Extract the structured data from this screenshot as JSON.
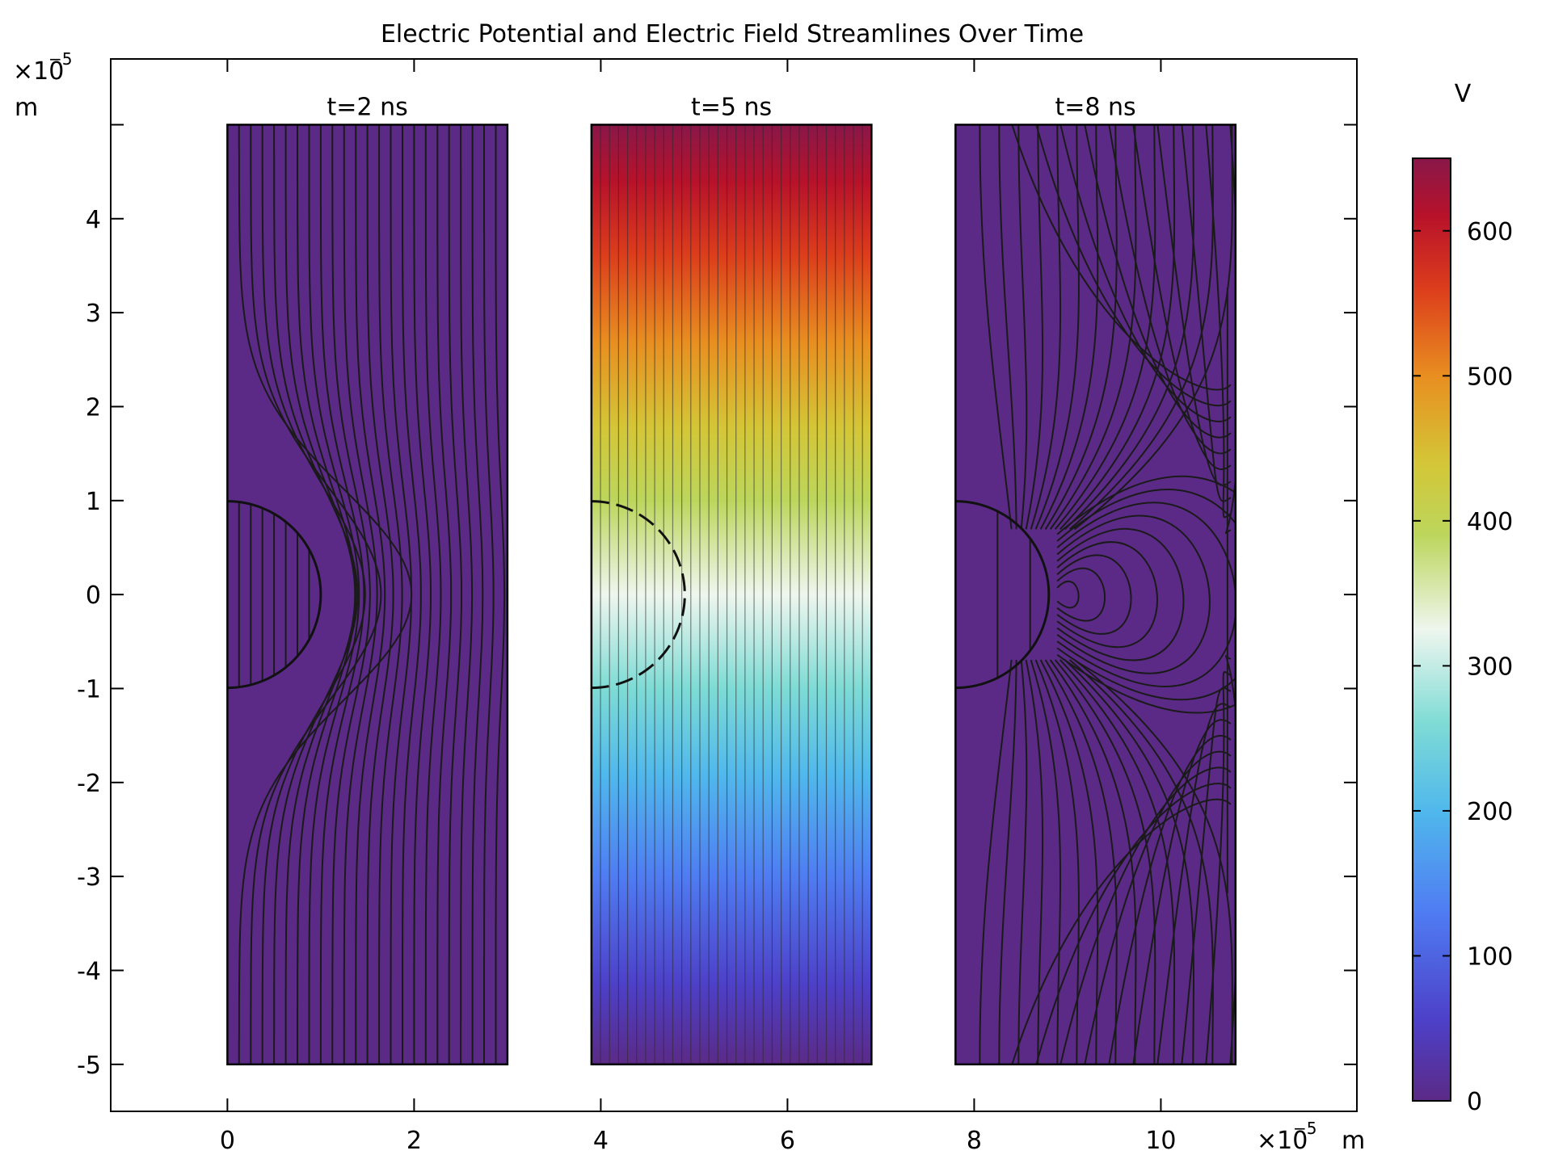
{
  "chart_data": {
    "type": "heatmap",
    "title": "Electric Potential and Electric Field Streamlines Over Time",
    "x_axis": {
      "ticks": [
        0,
        2,
        4,
        6,
        8,
        10
      ],
      "tick_labels": [
        "0",
        "2",
        "4",
        "6",
        "8",
        "10"
      ],
      "range": [
        -1.25,
        12.1
      ],
      "multiplier": "×10",
      "exponent": "−5",
      "unit": "m"
    },
    "y_axis": {
      "ticks": [
        4,
        3,
        2,
        1,
        0,
        -1,
        -2,
        -3,
        -4,
        -5
      ],
      "tick_labels": [
        "4",
        "3",
        "2",
        "1",
        "0",
        "-1",
        "-2",
        "-3",
        "-4",
        "-5"
      ],
      "range": [
        -5.5,
        5.7
      ],
      "multiplier": "×10",
      "exponent": "−5",
      "unit": "m"
    },
    "panels": [
      {
        "label": "t=2 ns",
        "x_range": [
          0,
          3
        ],
        "y_range": [
          -5,
          5
        ],
        "potential_V": "≈0 (uniform)",
        "sphere": {
          "center": [
            0,
            0
          ],
          "radius": 1,
          "outline": "solid"
        },
        "field": "straight vertical lines bending around the sphere"
      },
      {
        "label": "t=5 ns",
        "x_range": [
          3.9,
          6.9
        ],
        "y_range": [
          -5,
          5
        ],
        "potential_V": "linear gradient 0 (bottom) to ≈650 (top)",
        "sphere": {
          "center": [
            3.9,
            0
          ],
          "radius": 1,
          "outline": "dashed"
        },
        "field": "uniform vertical lines"
      },
      {
        "label": "t=8 ns",
        "x_range": [
          7.8,
          10.8
        ],
        "y_range": [
          -5,
          5
        ],
        "potential_V": "≈0 (uniform)",
        "sphere": {
          "center": [
            7.8,
            0
          ],
          "radius": 1,
          "outline": "solid"
        },
        "field": "dipole-like loops around the sphere"
      }
    ],
    "colorbar": {
      "unit": "V",
      "min": 0,
      "max": 650,
      "ticks": [
        0,
        100,
        200,
        300,
        400,
        500,
        600
      ],
      "tick_labels": [
        "0",
        "100",
        "200",
        "300",
        "400",
        "500",
        "600"
      ],
      "colormap": [
        {
          "v": 0,
          "color": "#5b2a86"
        },
        {
          "v": 55,
          "color": "#4d40c8"
        },
        {
          "v": 130,
          "color": "#4f7cf2"
        },
        {
          "v": 200,
          "color": "#50b8ec"
        },
        {
          "v": 260,
          "color": "#7edbd5"
        },
        {
          "v": 325,
          "color": "#eef6ee"
        },
        {
          "v": 390,
          "color": "#bcd65c"
        },
        {
          "v": 440,
          "color": "#d4c637"
        },
        {
          "v": 500,
          "color": "#e88e20"
        },
        {
          "v": 560,
          "color": "#dc3d1c"
        },
        {
          "v": 610,
          "color": "#b8122a"
        },
        {
          "v": 650,
          "color": "#891749"
        }
      ]
    },
    "colors": {
      "uniform_potential": "#5b2a86",
      "streamline": "#1a1a1a"
    }
  }
}
